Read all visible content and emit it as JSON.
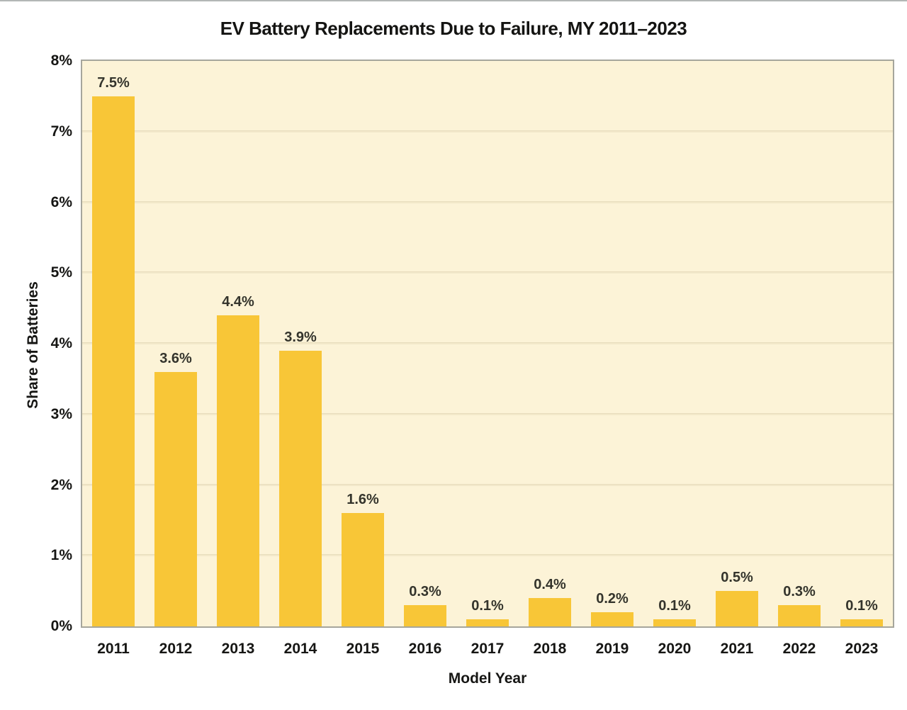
{
  "chart_data": {
    "type": "bar",
    "title": "EV Battery Replacements Due to Failure, MY 2011–2023",
    "xlabel": "Model Year",
    "ylabel": "Share of Batteries",
    "categories": [
      "2011",
      "2012",
      "2013",
      "2014",
      "2015",
      "2016",
      "2017",
      "2018",
      "2019",
      "2020",
      "2021",
      "2022",
      "2023"
    ],
    "values": [
      7.5,
      3.6,
      4.4,
      3.9,
      1.6,
      0.3,
      0.1,
      0.4,
      0.2,
      0.1,
      0.5,
      0.3,
      0.1
    ],
    "data_labels": [
      "7.5%",
      "3.6%",
      "4.4%",
      "3.9%",
      "1.6%",
      "0.3%",
      "0.1%",
      "0.4%",
      "0.2%",
      "0.1%",
      "0.5%",
      "0.3%",
      "0.1%"
    ],
    "y_ticks": [
      "0%",
      "1%",
      "2%",
      "3%",
      "4%",
      "5%",
      "6%",
      "7%",
      "8%"
    ],
    "ylim": [
      0,
      8
    ],
    "grid": "horizontal",
    "legend": "none",
    "colors": {
      "bar": "#F8C637",
      "plot_background": "#FCF3D7",
      "gridline": "#EDE2C3",
      "plot_border": "#A6A69C",
      "text": "#161614",
      "data_label_text": "#34342C",
      "page_background": "#ffffff"
    }
  }
}
